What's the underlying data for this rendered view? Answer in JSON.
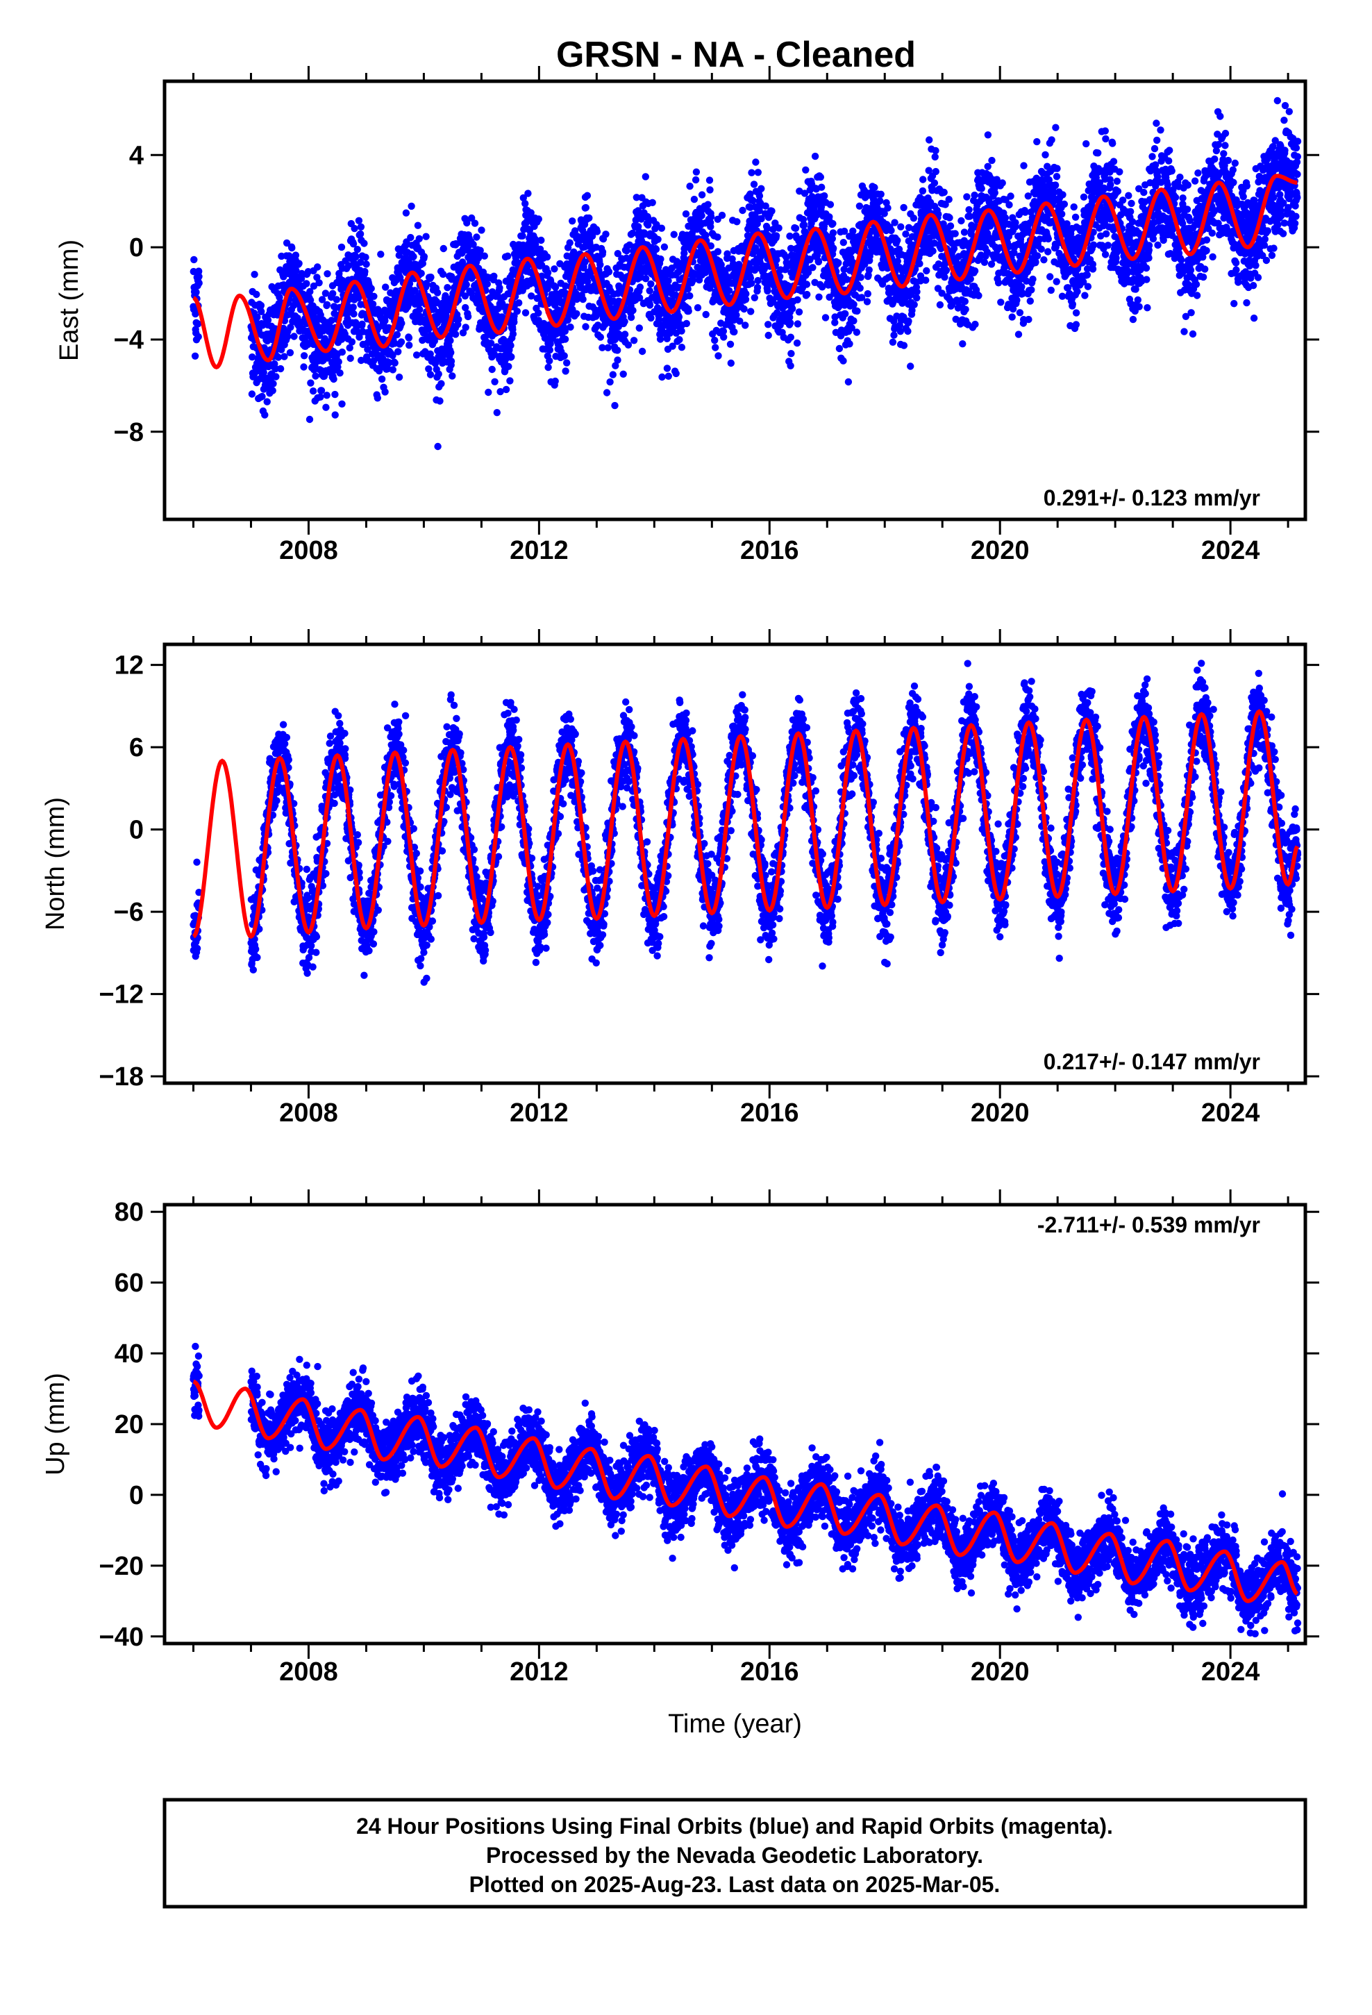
{
  "title": "GRSN  - NA - Cleaned",
  "footer": {
    "line1": "24 Hour Positions Using Final Orbits (blue) and Rapid Orbits (magenta).",
    "line2": "Processed by the Nevada Geodetic Laboratory.",
    "line3": "Plotted on 2025-Aug-23. Last data on 2025-Mar-05."
  },
  "colors": {
    "data": "#0000ff",
    "model": "#ff0000",
    "frame": "#000000"
  },
  "chart_data": [
    {
      "type": "scatter",
      "component": "east",
      "ylabel": "East (mm)",
      "xlabel": "",
      "xlim": [
        2005.5,
        2025.3
      ],
      "ylim": [
        -11.8,
        7.2
      ],
      "xticks": [
        2008,
        2012,
        2016,
        2020,
        2024
      ],
      "xtick_labels": [
        "2008",
        "2012",
        "2016",
        "2020",
        "2024"
      ],
      "yticks": [
        -8,
        -4,
        0,
        4
      ],
      "ytick_labels": [
        "−8",
        "−4",
        "0",
        "4"
      ],
      "rate_text": "0.291+/- 0.123 mm/yr",
      "rate_position": "bottom-right",
      "data_span": [
        2006.0,
        2025.17
      ],
      "gap": [
        2006.1,
        2007.0
      ],
      "model": {
        "values": [
          [
            2006.0,
            -2.2
          ],
          [
            2006.4,
            -5.2
          ],
          [
            2006.8,
            -2.1
          ],
          [
            2007.3,
            -4.9
          ],
          [
            2007.7,
            -1.8
          ],
          [
            2008.3,
            -4.5
          ],
          [
            2008.8,
            -1.5
          ],
          [
            2009.3,
            -4.3
          ],
          [
            2009.8,
            -1.1
          ],
          [
            2010.3,
            -3.9
          ],
          [
            2010.8,
            -0.8
          ],
          [
            2011.3,
            -3.7
          ],
          [
            2011.8,
            -0.5
          ],
          [
            2012.3,
            -3.4
          ],
          [
            2012.8,
            -0.3
          ],
          [
            2013.3,
            -3.1
          ],
          [
            2013.8,
            0.0
          ],
          [
            2014.3,
            -2.8
          ],
          [
            2014.8,
            0.3
          ],
          [
            2015.3,
            -2.5
          ],
          [
            2015.8,
            0.6
          ],
          [
            2016.3,
            -2.2
          ],
          [
            2016.8,
            0.8
          ],
          [
            2017.3,
            -2.0
          ],
          [
            2017.8,
            1.1
          ],
          [
            2018.3,
            -1.7
          ],
          [
            2018.8,
            1.4
          ],
          [
            2019.3,
            -1.4
          ],
          [
            2019.8,
            1.6
          ],
          [
            2020.3,
            -1.1
          ],
          [
            2020.8,
            1.9
          ],
          [
            2021.3,
            -0.8
          ],
          [
            2021.8,
            2.2
          ],
          [
            2022.3,
            -0.5
          ],
          [
            2022.8,
            2.5
          ],
          [
            2023.3,
            -0.3
          ],
          [
            2023.8,
            2.8
          ],
          [
            2024.3,
            0.0
          ],
          [
            2024.8,
            3.1
          ],
          [
            2025.17,
            2.8
          ]
        ]
      },
      "scatter_summary": {
        "trend_start": -3.5,
        "trend_end": 1.8,
        "amplitude": 1.6,
        "scatter_sd": 1.2
      }
    },
    {
      "type": "scatter",
      "component": "north",
      "ylabel": "North (mm)",
      "xlabel": "",
      "xlim": [
        2005.5,
        2025.3
      ],
      "ylim": [
        -18.5,
        13.5
      ],
      "xticks": [
        2008,
        2012,
        2016,
        2020,
        2024
      ],
      "xtick_labels": [
        "2008",
        "2012",
        "2016",
        "2020",
        "2024"
      ],
      "yticks": [
        -18,
        -12,
        -6,
        0,
        6,
        12
      ],
      "ytick_labels": [
        "−18",
        "−12",
        "−6",
        "0",
        "6",
        "12"
      ],
      "rate_text": "0.217+/- 0.147 mm/yr",
      "rate_position": "bottom-right",
      "data_span": [
        2006.0,
        2025.17
      ],
      "gap": [
        2006.1,
        2007.0
      ],
      "model": {
        "values": [
          [
            2006.0,
            -7.8
          ],
          [
            2006.5,
            5.0
          ],
          [
            2007.0,
            -7.8
          ],
          [
            2007.5,
            5.2
          ],
          [
            2008.0,
            -7.5
          ],
          [
            2008.5,
            5.4
          ],
          [
            2009.0,
            -7.2
          ],
          [
            2009.5,
            5.6
          ],
          [
            2010.0,
            -7.0
          ],
          [
            2010.5,
            5.8
          ],
          [
            2011.0,
            -6.8
          ],
          [
            2011.5,
            6.0
          ],
          [
            2012.0,
            -6.6
          ],
          [
            2012.5,
            6.2
          ],
          [
            2013.0,
            -6.5
          ],
          [
            2013.5,
            6.4
          ],
          [
            2014.0,
            -6.3
          ],
          [
            2014.5,
            6.6
          ],
          [
            2015.0,
            -6.1
          ],
          [
            2015.5,
            6.8
          ],
          [
            2016.0,
            -5.9
          ],
          [
            2016.5,
            7.0
          ],
          [
            2017.0,
            -5.7
          ],
          [
            2017.5,
            7.2
          ],
          [
            2018.0,
            -5.5
          ],
          [
            2018.5,
            7.4
          ],
          [
            2019.0,
            -5.3
          ],
          [
            2019.5,
            7.6
          ],
          [
            2020.0,
            -5.1
          ],
          [
            2020.5,
            7.8
          ],
          [
            2021.0,
            -4.9
          ],
          [
            2021.5,
            8.0
          ],
          [
            2022.0,
            -4.7
          ],
          [
            2022.5,
            8.2
          ],
          [
            2023.0,
            -4.5
          ],
          [
            2023.5,
            8.4
          ],
          [
            2024.0,
            -4.3
          ],
          [
            2024.5,
            8.6
          ],
          [
            2025.0,
            -4.0
          ],
          [
            2025.17,
            -1.2
          ]
        ]
      },
      "scatter_summary": {
        "trend_start": -1.4,
        "trend_end": 2.2,
        "amplitude": 6.6,
        "scatter_sd": 1.5
      }
    },
    {
      "type": "scatter",
      "component": "up",
      "ylabel": "Up (mm)",
      "xlabel": "Time (year)",
      "xlim": [
        2005.5,
        2025.3
      ],
      "ylim": [
        -42,
        82
      ],
      "xticks": [
        2008,
        2012,
        2016,
        2020,
        2024
      ],
      "xtick_labels": [
        "2008",
        "2012",
        "2016",
        "2020",
        "2024"
      ],
      "yticks": [
        -40,
        -20,
        0,
        20,
        40,
        60,
        80
      ],
      "ytick_labels": [
        "−40",
        "−20",
        "0",
        "20",
        "40",
        "60",
        "80"
      ],
      "rate_text": "-2.711+/- 0.539 mm/yr",
      "rate_position": "top-right",
      "data_span": [
        2006.0,
        2025.17
      ],
      "gap": [
        2006.1,
        2007.0
      ],
      "model": {
        "values": [
          [
            2006.0,
            32
          ],
          [
            2006.4,
            19
          ],
          [
            2006.9,
            30
          ],
          [
            2007.3,
            16
          ],
          [
            2007.9,
            27
          ],
          [
            2008.3,
            13
          ],
          [
            2008.9,
            24
          ],
          [
            2009.3,
            10
          ],
          [
            2009.9,
            22
          ],
          [
            2010.3,
            8
          ],
          [
            2010.9,
            19
          ],
          [
            2011.3,
            5
          ],
          [
            2011.9,
            16
          ],
          [
            2012.3,
            2
          ],
          [
            2012.9,
            13
          ],
          [
            2013.3,
            -1
          ],
          [
            2013.9,
            11
          ],
          [
            2014.3,
            -3
          ],
          [
            2014.9,
            8
          ],
          [
            2015.3,
            -6
          ],
          [
            2015.9,
            5
          ],
          [
            2016.3,
            -9
          ],
          [
            2016.9,
            3
          ],
          [
            2017.3,
            -11
          ],
          [
            2017.9,
            0
          ],
          [
            2018.3,
            -14
          ],
          [
            2018.9,
            -3
          ],
          [
            2019.3,
            -17
          ],
          [
            2019.9,
            -5
          ],
          [
            2020.3,
            -19
          ],
          [
            2020.9,
            -8
          ],
          [
            2021.3,
            -22
          ],
          [
            2021.9,
            -11
          ],
          [
            2022.3,
            -25
          ],
          [
            2022.9,
            -13
          ],
          [
            2023.3,
            -27
          ],
          [
            2023.9,
            -16
          ],
          [
            2024.3,
            -30
          ],
          [
            2024.9,
            -19
          ],
          [
            2025.17,
            -28
          ]
        ]
      },
      "scatter_summary": {
        "trend_start": 18,
        "trend_end": -26,
        "amplitude": 6.0,
        "scatter_sd": 4.5
      }
    }
  ]
}
